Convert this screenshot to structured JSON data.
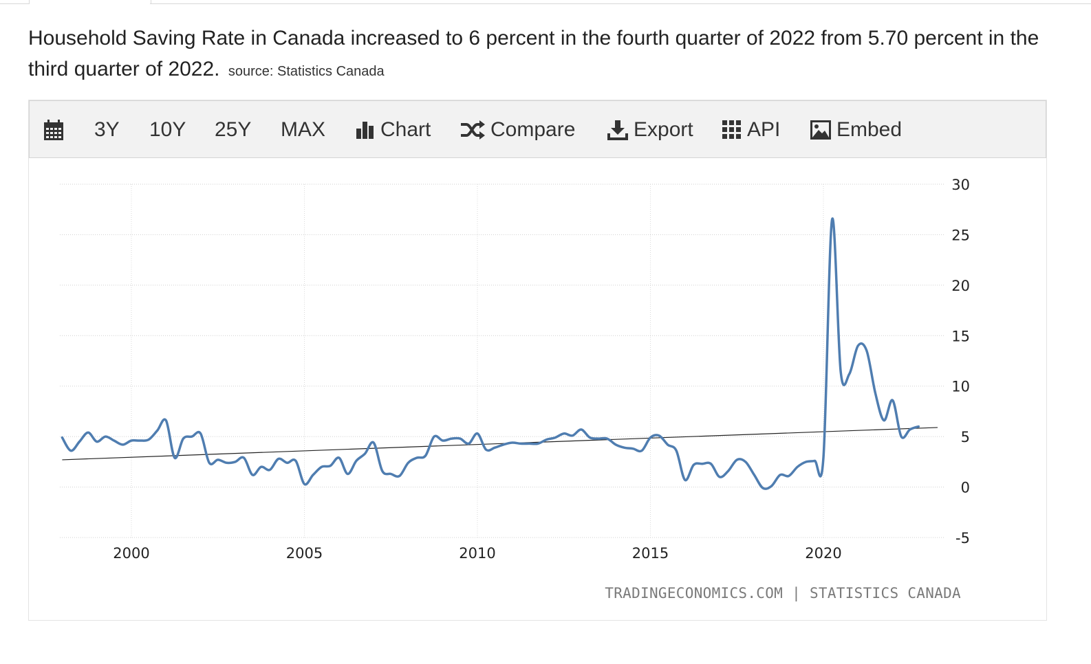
{
  "header": {
    "description": "Household Saving Rate in Canada increased to 6 percent in the fourth quarter of 2022 from 5.70 percent in the third quarter of 2022.",
    "source": "source: Statistics Canada"
  },
  "toolbar": {
    "calendar_icon": "calendar-icon",
    "range_3y": "3Y",
    "range_10y": "10Y",
    "range_25y": "25Y",
    "range_max": "MAX",
    "chart_label": "Chart",
    "compare_label": "Compare",
    "export_label": "Export",
    "api_label": "API",
    "embed_label": "Embed"
  },
  "credit": "TRADINGECONOMICS.COM | STATISTICS CANADA",
  "chart_data": {
    "type": "line",
    "title": "",
    "xlabel": "",
    "ylabel": "",
    "x_ticks": [
      "2000",
      "2005",
      "2010",
      "2015",
      "2020"
    ],
    "y_ticks": [
      "30",
      "25",
      "20",
      "15",
      "10",
      "5",
      "0",
      "-5"
    ],
    "ylim": [
      -5,
      30
    ],
    "xlim": [
      1997.9,
      2023.3
    ],
    "grid": true,
    "legend": "none",
    "line_color": "#4f7db0",
    "trend_color": "#222222",
    "series": [
      {
        "x": [
          1998.0,
          1998.25,
          1998.5,
          1998.75,
          1999.0,
          1999.25,
          1999.5,
          1999.75,
          2000.0,
          2000.25,
          2000.5,
          2000.75,
          2001.0,
          2001.25,
          2001.5,
          2001.75,
          2002.0,
          2002.25,
          2002.5,
          2002.75,
          2003.0,
          2003.25,
          2003.5,
          2003.75,
          2004.0,
          2004.25,
          2004.5,
          2004.75,
          2005.0,
          2005.25,
          2005.5,
          2005.75,
          2006.0,
          2006.25,
          2006.5,
          2006.75,
          2007.0,
          2007.25,
          2007.5,
          2007.75,
          2008.0,
          2008.25,
          2008.5,
          2008.75,
          2009.0,
          2009.25,
          2009.5,
          2009.75,
          2010.0,
          2010.25,
          2010.5,
          2010.75,
          2011.0,
          2011.25,
          2011.5,
          2011.75,
          2012.0,
          2012.25,
          2012.5,
          2012.75,
          2013.0,
          2013.25,
          2013.5,
          2013.75,
          2014.0,
          2014.25,
          2014.5,
          2014.75,
          2015.0,
          2015.25,
          2015.5,
          2015.75,
          2016.0,
          2016.25,
          2016.5,
          2016.75,
          2017.0,
          2017.25,
          2017.5,
          2017.75,
          2018.0,
          2018.25,
          2018.5,
          2018.75,
          2019.0,
          2019.25,
          2019.5,
          2019.75,
          2020.0,
          2020.25,
          2020.5,
          2020.75,
          2021.0,
          2021.25,
          2021.5,
          2021.75,
          2022.0,
          2022.25,
          2022.5,
          2022.75
        ],
        "values": [
          4.9,
          3.6,
          4.5,
          5.4,
          4.5,
          5.0,
          4.6,
          4.2,
          4.6,
          4.6,
          4.7,
          5.6,
          6.6,
          2.9,
          4.8,
          5.0,
          5.3,
          2.4,
          2.7,
          2.4,
          2.5,
          2.9,
          1.2,
          2.0,
          1.7,
          2.8,
          2.4,
          2.6,
          0.3,
          1.2,
          2.0,
          2.1,
          2.9,
          1.3,
          2.6,
          3.3,
          4.4,
          1.6,
          1.3,
          1.1,
          2.4,
          2.9,
          3.1,
          5.0,
          4.6,
          4.8,
          4.8,
          4.3,
          5.3,
          3.7,
          3.9,
          4.2,
          4.4,
          4.3,
          4.3,
          4.3,
          4.7,
          4.9,
          5.3,
          5.1,
          5.7,
          4.9,
          4.8,
          4.8,
          4.2,
          3.9,
          3.8,
          3.6,
          4.9,
          5.1,
          4.2,
          3.6,
          0.7,
          2.2,
          2.3,
          2.3,
          1.0,
          1.6,
          2.7,
          2.5,
          1.2,
          -0.1,
          0.1,
          1.2,
          1.1,
          2.0,
          2.5,
          2.6,
          2.9,
          26.5,
          11.4,
          11.2,
          14.0,
          13.5,
          9.3,
          6.6,
          8.6,
          5.0,
          5.7,
          6.0
        ]
      }
    ],
    "trend": {
      "x": [
        1998.0,
        2023.3
      ],
      "values": [
        2.7,
        5.9
      ]
    }
  }
}
